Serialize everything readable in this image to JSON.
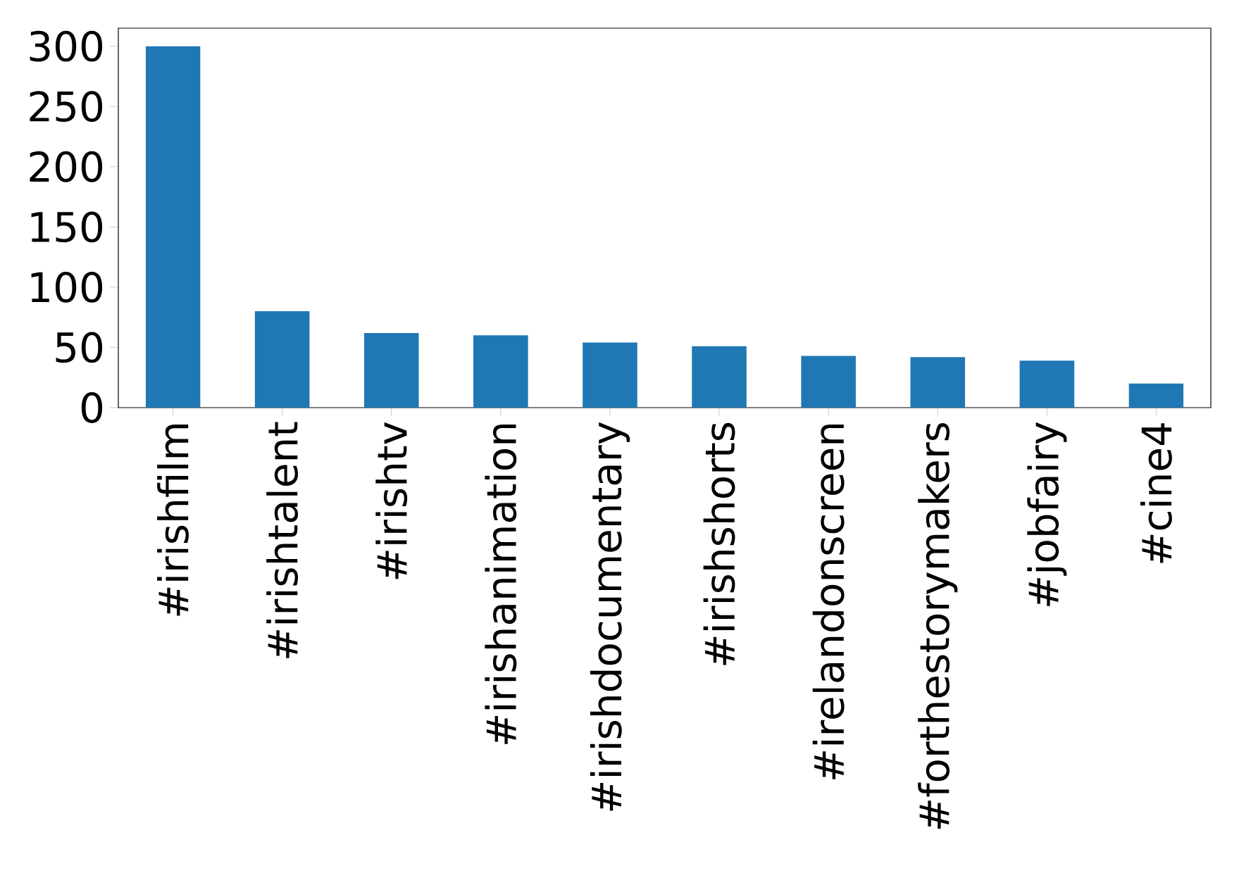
{
  "chart_data": {
    "type": "bar",
    "categories": [
      "#irishfilm",
      "#irishtalent",
      "#irishtv",
      "#irishanimation",
      "#irishdocumentary",
      "#irishshorts",
      "#irelandonscreen",
      "#forthestorymakers",
      "#jobfairy",
      "#cine4"
    ],
    "values": [
      300,
      80,
      62,
      60,
      54,
      51,
      43,
      42,
      39,
      20
    ],
    "color": "#1f77b4",
    "ylim": [
      0,
      315
    ],
    "yticks": [
      0,
      50,
      100,
      150,
      200,
      250,
      300
    ],
    "grid": false
  }
}
